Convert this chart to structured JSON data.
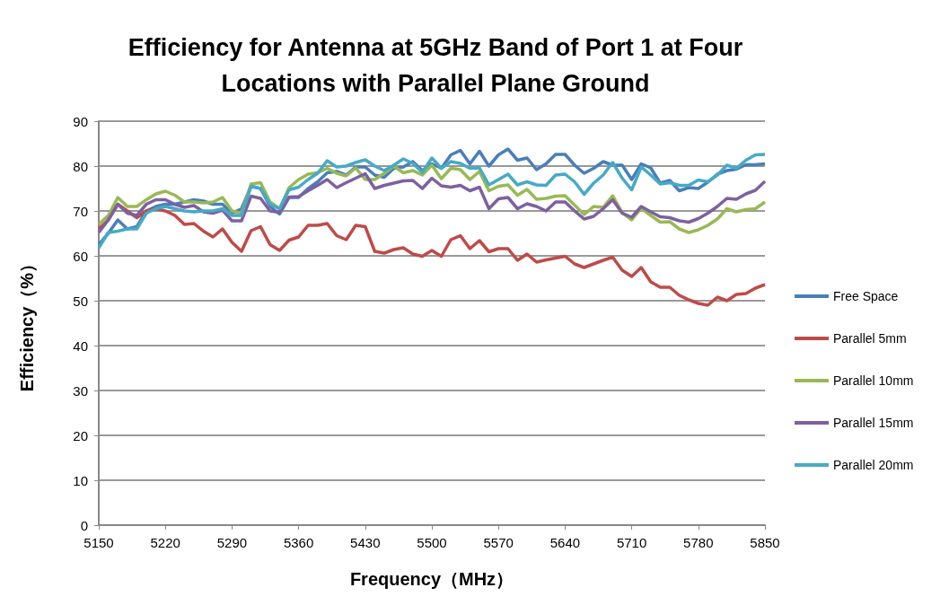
{
  "chart_data": {
    "type": "line",
    "title": "Efficiency for Antenna at 5GHz Band of Port 1 at Four\nLocations with Parallel Plane Ground",
    "xlabel": "Frequency（MHz）",
    "ylabel": "Efficiency（%）",
    "x": [
      5150,
      5160,
      5170,
      5180,
      5190,
      5200,
      5210,
      5220,
      5230,
      5240,
      5250,
      5260,
      5270,
      5280,
      5290,
      5300,
      5310,
      5320,
      5330,
      5340,
      5350,
      5360,
      5370,
      5380,
      5390,
      5400,
      5410,
      5420,
      5430,
      5440,
      5450,
      5460,
      5470,
      5480,
      5490,
      5500,
      5510,
      5520,
      5530,
      5540,
      5550,
      5560,
      5570,
      5580,
      5590,
      5600,
      5610,
      5620,
      5630,
      5640,
      5650,
      5660,
      5670,
      5680,
      5690,
      5700,
      5710,
      5720,
      5730,
      5740,
      5750,
      5760,
      5770,
      5780,
      5790,
      5800,
      5810,
      5820,
      5830,
      5840,
      5850
    ],
    "xlim": [
      5150,
      5850
    ],
    "xticks": [
      5150,
      5220,
      5290,
      5360,
      5430,
      5500,
      5570,
      5640,
      5710,
      5780,
      5850
    ],
    "ylim": [
      0,
      90
    ],
    "yticks": [
      0,
      10,
      20,
      30,
      40,
      50,
      60,
      70,
      80,
      90
    ],
    "grid": "y",
    "legend": "right",
    "marker": "none",
    "line_style": "solid",
    "series": [
      {
        "name": "Free Space",
        "color": "#4a7ebb",
        "values": [
          62.5,
          65,
          68,
          66,
          66.5,
          70,
          71,
          71.5,
          71.5,
          72,
          72.5,
          72.2,
          71.5,
          71.5,
          69.5,
          70.5,
          75.5,
          75,
          71,
          69.3,
          73,
          73,
          75,
          76.5,
          78.5,
          78.8,
          78,
          79.8,
          79.8,
          78,
          77.5,
          79.5,
          79.8,
          81,
          79,
          80.5,
          79.5,
          82.5,
          83.5,
          80.5,
          83.3,
          80,
          82.5,
          83.8,
          81.3,
          81.8,
          79.2,
          80.5,
          82.6,
          82.6,
          80.2,
          78.4,
          79.5,
          81,
          80.2,
          80.2,
          77,
          80.5,
          79.6,
          76.2,
          76.8,
          74.5,
          75.2,
          75,
          76.4,
          78.2,
          79,
          79.3,
          80.3,
          80.3,
          80.5
        ]
      },
      {
        "name": "Parallel 5mm",
        "color": "#be4b48",
        "values": [
          66,
          68,
          71.5,
          70,
          68.5,
          70,
          70.5,
          70,
          69,
          67,
          67.2,
          65.5,
          64.2,
          66,
          63,
          61,
          65.6,
          66.5,
          62.5,
          61.2,
          63.5,
          64.2,
          66.8,
          66.8,
          67.2,
          64.5,
          63.6,
          66.8,
          66.5,
          61,
          60.6,
          61.4,
          61.8,
          60.4,
          59.9,
          61.2,
          59.9,
          63.6,
          64.5,
          61.6,
          63.4,
          60.9,
          61.6,
          61.6,
          59,
          60.4,
          58.6,
          59.1,
          59.5,
          59.9,
          58.2,
          57.4,
          58.2,
          59,
          59.7,
          56.8,
          55.4,
          57.4,
          54.2,
          53,
          53,
          51.2,
          50.2,
          49.4,
          49,
          50.8,
          50,
          51.4,
          51.6,
          52.8,
          53.6
        ]
      },
      {
        "name": "Parallel 10mm",
        "color": "#98b954",
        "values": [
          67,
          69,
          73,
          71,
          71,
          72.5,
          73.8,
          74.4,
          73.5,
          72,
          72,
          71.8,
          72,
          73,
          70,
          69.5,
          76,
          76.3,
          72,
          70.5,
          75.2,
          77,
          78.2,
          78.5,
          79.5,
          78.4,
          77.8,
          79.6,
          77,
          77,
          78.4,
          80,
          78.5,
          79,
          78,
          80.2,
          77.2,
          79.5,
          79.2,
          77,
          78.8,
          74.5,
          75.5,
          75.8,
          73.5,
          74.8,
          72.6,
          72.8,
          73.3,
          73.4,
          71.3,
          69.2,
          71,
          70.8,
          73.4,
          69.6,
          68,
          70.6,
          69,
          67.5,
          67.6,
          66,
          65.2,
          65.8,
          66.8,
          68.2,
          70.5,
          69.8,
          70.3,
          70.5,
          72
        ]
      },
      {
        "name": "Parallel 15mm",
        "color": "#7d60a0",
        "values": [
          65.2,
          68,
          71.5,
          69.5,
          69,
          71.5,
          72.5,
          72.5,
          71.5,
          70.8,
          71.2,
          69.8,
          69.5,
          70.2,
          67.8,
          67.8,
          73.3,
          72.8,
          70,
          69.7,
          73.1,
          73.2,
          74.5,
          75.7,
          77,
          75.2,
          76.3,
          77.3,
          78.3,
          75,
          75.7,
          76.2,
          76.7,
          76.8,
          75,
          77.3,
          75.6,
          75.3,
          75.7,
          74.5,
          75.3,
          70.5,
          72.7,
          73,
          70.5,
          71.6,
          71,
          70,
          72,
          72,
          70,
          68.2,
          68.8,
          70.5,
          72.5,
          69.5,
          68.6,
          71,
          69.8,
          68.7,
          68.5,
          67.8,
          67.5,
          68.3,
          69.5,
          71,
          72.8,
          72.6,
          73.8,
          74.6,
          76.6
        ]
      },
      {
        "name": "Parallel 20mm",
        "color": "#46aac5",
        "values": [
          61.8,
          65.2,
          65.5,
          66,
          66,
          69.5,
          70.5,
          71,
          70.5,
          70,
          69.8,
          70,
          70,
          70.5,
          69,
          69,
          75.5,
          75,
          71.5,
          70.5,
          74.7,
          75.3,
          77,
          78.4,
          81.2,
          79.8,
          80,
          80.8,
          81.4,
          80,
          79,
          80.2,
          81.6,
          80.6,
          78.6,
          81.8,
          79.5,
          81,
          80.6,
          79.5,
          79.6,
          75.8,
          77,
          78.2,
          75.8,
          76.5,
          75.8,
          75.7,
          78,
          78.2,
          76.5,
          73.7,
          76.2,
          78,
          80.8,
          77.3,
          74.7,
          79.8,
          78,
          76,
          76.3,
          75.7,
          75.7,
          76.9,
          76.5,
          78,
          80.2,
          79.5,
          81.3,
          82.5,
          82.6
        ]
      }
    ]
  }
}
